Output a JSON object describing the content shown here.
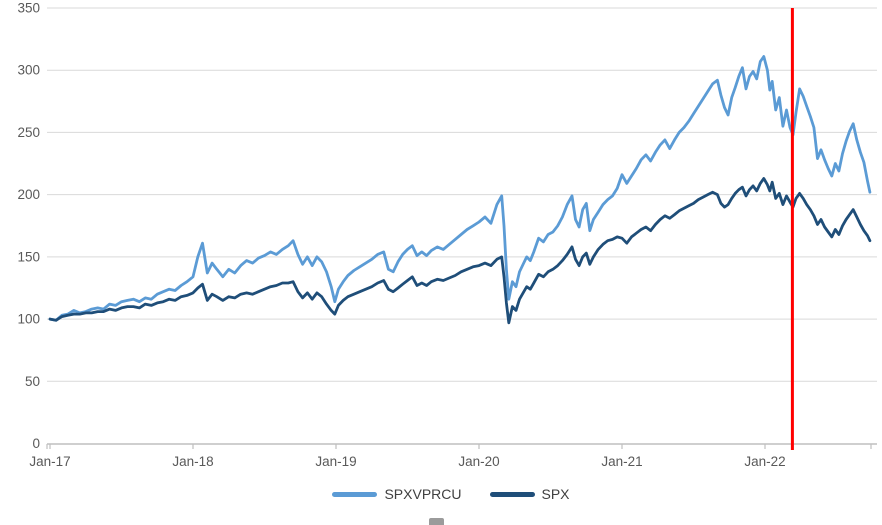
{
  "chart_data": {
    "type": "line",
    "title": "",
    "x_unit": "months since Jan-2017",
    "x_axis": {
      "tick_labels": [
        "Jan-17",
        "Jan-18",
        "Jan-19",
        "Jan-20",
        "Jan-21",
        "Jan-22"
      ],
      "tick_months": [
        0,
        12,
        24,
        36,
        48,
        60
      ]
    },
    "y_axis": {
      "ticks": [
        0,
        50,
        100,
        150,
        200,
        250,
        300,
        350
      ],
      "range": [
        0,
        350
      ],
      "clipped_title_fragment": ")"
    },
    "grid": {
      "horizontal": true,
      "vertical": false,
      "color": "#d9d9d9"
    },
    "axis_color": "#bfbfbf",
    "tick_label_color": "#595959",
    "legend": {
      "position": "bottom",
      "text_color": "#404040"
    },
    "annotations": {
      "vertical_line": {
        "month": 62.3,
        "color": "#ff0000",
        "label": ""
      }
    },
    "x": [
      0,
      0.5,
      1,
      1.5,
      2,
      2.5,
      3,
      3.5,
      4,
      4.5,
      5,
      5.5,
      6,
      6.5,
      7,
      7.5,
      8,
      8.5,
      9,
      9.5,
      10,
      10.5,
      11,
      11.5,
      12,
      12.4,
      12.8,
      13.2,
      13.6,
      14,
      14.5,
      15,
      15.5,
      16,
      16.5,
      17,
      17.5,
      18,
      18.5,
      19,
      19.5,
      20,
      20.4,
      20.8,
      21.2,
      21.6,
      22,
      22.4,
      22.8,
      23.2,
      23.6,
      23.9,
      24.2,
      24.6,
      25,
      25.5,
      26,
      26.5,
      27,
      27.5,
      28,
      28.4,
      28.8,
      29.2,
      29.6,
      30,
      30.4,
      30.8,
      31.2,
      31.6,
      32,
      32.5,
      33,
      33.5,
      34,
      34.5,
      35,
      35.5,
      36,
      36.5,
      37,
      37.5,
      37.9,
      38.1,
      38.3,
      38.5,
      38.8,
      39.1,
      39.4,
      39.7,
      40,
      40.3,
      40.6,
      41,
      41.4,
      41.8,
      42.2,
      42.6,
      43,
      43.4,
      43.8,
      44.1,
      44.4,
      44.7,
      45,
      45.3,
      45.6,
      46,
      46.4,
      46.8,
      47.2,
      47.6,
      48,
      48.4,
      48.8,
      49.2,
      49.6,
      50,
      50.4,
      50.8,
      51.2,
      51.6,
      52,
      52.4,
      52.8,
      53.2,
      53.6,
      54,
      54.4,
      54.8,
      55.2,
      55.6,
      56,
      56.3,
      56.6,
      56.9,
      57.2,
      57.5,
      57.8,
      58.1,
      58.4,
      58.7,
      59,
      59.3,
      59.6,
      59.9,
      60.2,
      60.4,
      60.6,
      60.9,
      61.2,
      61.5,
      61.8,
      62.1,
      62.35,
      62.6,
      62.9,
      63.2,
      63.5,
      63.8,
      64.1,
      64.4,
      64.7,
      65,
      65.3,
      65.6,
      65.9,
      66.2,
      66.5,
      66.8,
      67.1,
      67.4,
      67.7,
      68,
      68.3,
      68.6,
      68.8
    ],
    "series": [
      {
        "name": "SPXVPRCU",
        "color": "#5b9bd5",
        "values": [
          100,
          99,
          103,
          104,
          107,
          105,
          106,
          108,
          109,
          108,
          112,
          111,
          114,
          115,
          116,
          114,
          117,
          116,
          120,
          122,
          124,
          123,
          127,
          130,
          134,
          150,
          161,
          137,
          145,
          140,
          134,
          140,
          137,
          143,
          147,
          145,
          149,
          151,
          154,
          152,
          156,
          159,
          163,
          152,
          144,
          150,
          143,
          150,
          146,
          138,
          126,
          114,
          124,
          130,
          135,
          139,
          142,
          145,
          148,
          152,
          154,
          140,
          138,
          146,
          152,
          156,
          159,
          151,
          154,
          151,
          155,
          158,
          156,
          160,
          164,
          168,
          172,
          175,
          178,
          182,
          177,
          192,
          199,
          175,
          140,
          116,
          130,
          126,
          138,
          144,
          150,
          147,
          154,
          165,
          162,
          168,
          170,
          175,
          182,
          192,
          199,
          180,
          174,
          188,
          193,
          171,
          180,
          186,
          192,
          196,
          199,
          205,
          216,
          209,
          215,
          221,
          228,
          232,
          227,
          234,
          240,
          244,
          237,
          244,
          250,
          254,
          259,
          265,
          271,
          277,
          283,
          289,
          292,
          280,
          270,
          264,
          278,
          286,
          295,
          302,
          285,
          295,
          299,
          293,
          307,
          311,
          300,
          284,
          291,
          268,
          278,
          255,
          268,
          254,
          248,
          266,
          285,
          279,
          271,
          263,
          254,
          229,
          236,
          228,
          221,
          215,
          225,
          219,
          233,
          243,
          251,
          257,
          244,
          234,
          226,
          211,
          202
        ]
      },
      {
        "name": "SPX",
        "color": "#1f4e79",
        "values": [
          100,
          99,
          102,
          103,
          104,
          104,
          105,
          105,
          106,
          106,
          108,
          107,
          109,
          110,
          110,
          109,
          112,
          111,
          113,
          114,
          116,
          115,
          118,
          119,
          121,
          125,
          128,
          115,
          120,
          118,
          115,
          118,
          117,
          120,
          121,
          120,
          122,
          124,
          126,
          127,
          129,
          129,
          130,
          122,
          117,
          121,
          116,
          121,
          118,
          112,
          107,
          104,
          111,
          115,
          118,
          120,
          122,
          124,
          126,
          129,
          131,
          124,
          122,
          125,
          128,
          131,
          134,
          127,
          129,
          127,
          130,
          132,
          131,
          133,
          135,
          138,
          140,
          142,
          143,
          145,
          143,
          148,
          150,
          134,
          113,
          97,
          110,
          107,
          116,
          121,
          126,
          124,
          129,
          136,
          134,
          138,
          140,
          143,
          147,
          152,
          158,
          148,
          143,
          150,
          153,
          144,
          150,
          156,
          160,
          163,
          164,
          166,
          165,
          161,
          166,
          169,
          172,
          174,
          171,
          176,
          180,
          183,
          181,
          184,
          187,
          189,
          191,
          193,
          196,
          198,
          200,
          202,
          200,
          193,
          190,
          192,
          197,
          201,
          204,
          206,
          199,
          204,
          207,
          203,
          209,
          213,
          208,
          203,
          210,
          197,
          201,
          192,
          199,
          194,
          190,
          197,
          201,
          197,
          192,
          188,
          183,
          176,
          180,
          174,
          170,
          166,
          172,
          168,
          175,
          180,
          184,
          188,
          182,
          176,
          171,
          167,
          163
        ]
      }
    ]
  }
}
